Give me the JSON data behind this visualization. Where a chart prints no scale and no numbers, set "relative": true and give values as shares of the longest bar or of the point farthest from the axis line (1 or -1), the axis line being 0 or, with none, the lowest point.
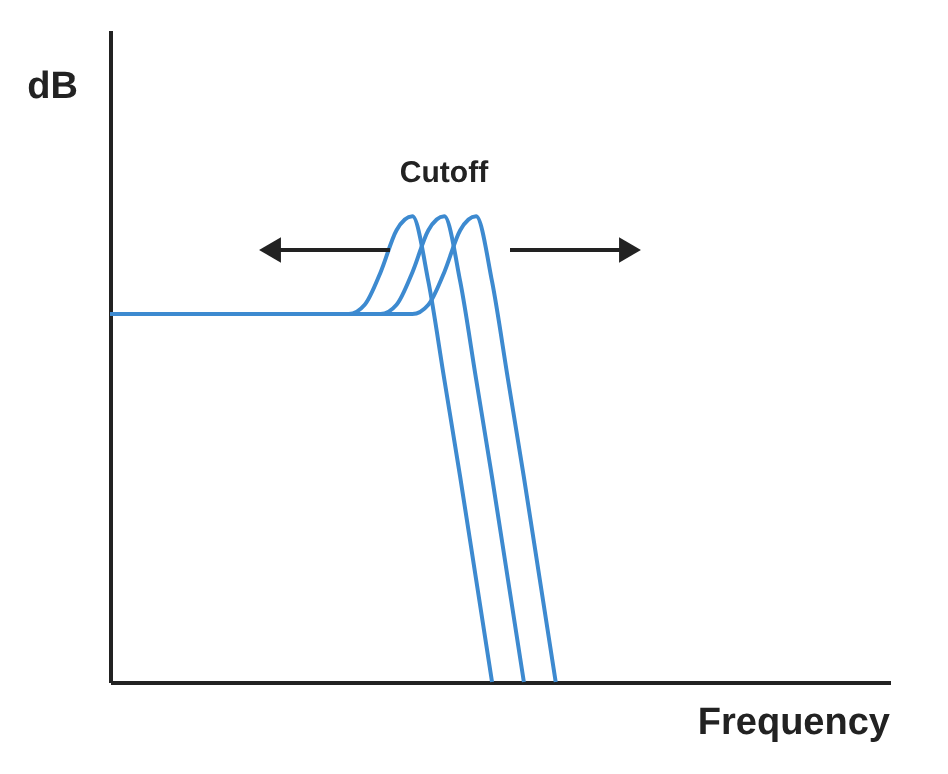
{
  "chart_data": {
    "type": "line",
    "relative": true,
    "xlabel": "Frequency",
    "ylabel": "dB",
    "annotations": [
      "Cutoff"
    ],
    "grid": false,
    "marker": "none",
    "line_style": "solid",
    "categories": [
      null,
      null,
      null,
      null,
      null,
      null,
      null,
      null,
      null,
      null,
      null,
      null,
      null,
      null,
      null,
      null,
      null,
      null,
      null,
      null,
      null,
      null,
      null,
      null,
      null,
      null,
      null,
      null,
      null,
      null,
      null,
      null,
      null,
      null,
      null,
      null,
      null,
      null,
      null,
      null,
      null,
      null,
      null,
      null,
      null,
      null,
      null,
      null,
      null,
      null
    ],
    "series": [
      {
        "color": "#3d8ad0",
        "values": [
          0.79,
          0.79,
          0.79,
          0.79,
          0.79,
          0.79,
          0.79,
          0.79,
          0.79,
          0.79,
          0.79,
          0.79,
          0.79,
          0.79,
          0.79,
          0.79,
          0.81,
          0.88,
          0.97,
          1,
          0.86,
          0.65,
          0.44,
          0.22,
          0,
          null,
          null,
          null,
          null,
          null,
          null,
          null,
          null,
          null,
          null,
          null,
          null,
          null,
          null,
          null,
          null,
          null,
          null,
          null,
          null,
          null,
          null,
          null,
          null,
          null
        ]
      },
      {
        "color": "#3d8ad0",
        "values": [
          0.79,
          0.79,
          0.79,
          0.79,
          0.79,
          0.79,
          0.79,
          0.79,
          0.79,
          0.79,
          0.79,
          0.79,
          0.79,
          0.79,
          0.79,
          0.79,
          0.79,
          0.79,
          0.81,
          0.88,
          0.97,
          1,
          0.86,
          0.65,
          0.44,
          0.22,
          0,
          null,
          null,
          null,
          null,
          null,
          null,
          null,
          null,
          null,
          null,
          null,
          null,
          null,
          null,
          null,
          null,
          null,
          null,
          null,
          null,
          null,
          null,
          null
        ]
      },
      {
        "color": "#3d8ad0",
        "values": [
          0.79,
          0.79,
          0.79,
          0.79,
          0.79,
          0.79,
          0.79,
          0.79,
          0.79,
          0.79,
          0.79,
          0.79,
          0.79,
          0.79,
          0.79,
          0.79,
          0.79,
          0.79,
          0.79,
          0.79,
          0.81,
          0.88,
          0.97,
          1,
          0.86,
          0.65,
          0.44,
          0.22,
          0,
          null,
          null,
          null,
          null,
          null,
          null,
          null,
          null,
          null,
          null,
          null,
          null,
          null,
          null,
          null,
          null,
          null,
          null,
          null,
          null,
          null
        ]
      }
    ]
  }
}
